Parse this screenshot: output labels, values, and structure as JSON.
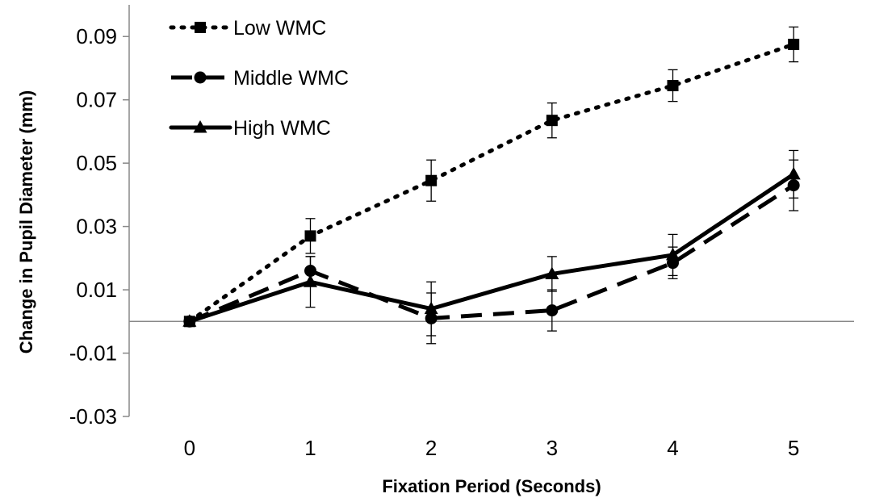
{
  "chart_data": {
    "type": "line",
    "title": "",
    "xlabel": "Fixation Period (Seconds)",
    "ylabel": "Change in Pupil Diameter (mm)",
    "x": [
      0,
      1,
      2,
      3,
      4,
      5
    ],
    "x_tick_labels": [
      "0",
      "1",
      "2",
      "3",
      "4",
      "5"
    ],
    "ylim": [
      -0.03,
      0.1
    ],
    "y_ticks": [
      -0.03,
      -0.01,
      0.01,
      0.03,
      0.05,
      0.07,
      0.09
    ],
    "y_tick_labels": [
      "-0.03",
      "-0.01",
      "0.01",
      "0.03",
      "0.05",
      "0.07",
      "0.09"
    ],
    "grid": false,
    "reference_line_y": 0,
    "legend_position": "top-left",
    "series": [
      {
        "name": "Low WMC",
        "line_style": "dotted",
        "marker": "square",
        "color": "#000000",
        "values": [
          0.0,
          0.027,
          0.0445,
          0.0635,
          0.0745,
          0.0875
        ],
        "error": [
          0.0,
          0.0055,
          0.0065,
          0.0055,
          0.005,
          0.0055
        ]
      },
      {
        "name": "Middle WMC",
        "line_style": "dashed",
        "marker": "circle",
        "color": "#000000",
        "values": [
          0.0,
          0.016,
          0.001,
          0.0035,
          0.0185,
          0.043
        ],
        "error": [
          0.0,
          0.0045,
          0.008,
          0.0065,
          0.005,
          0.008
        ]
      },
      {
        "name": "High WMC",
        "line_style": "solid",
        "marker": "triangle",
        "color": "#000000",
        "values": [
          0.0,
          0.0125,
          0.004,
          0.015,
          0.021,
          0.0465
        ],
        "error": [
          0.0,
          0.008,
          0.0085,
          0.0055,
          0.0065,
          0.0075
        ]
      }
    ]
  }
}
